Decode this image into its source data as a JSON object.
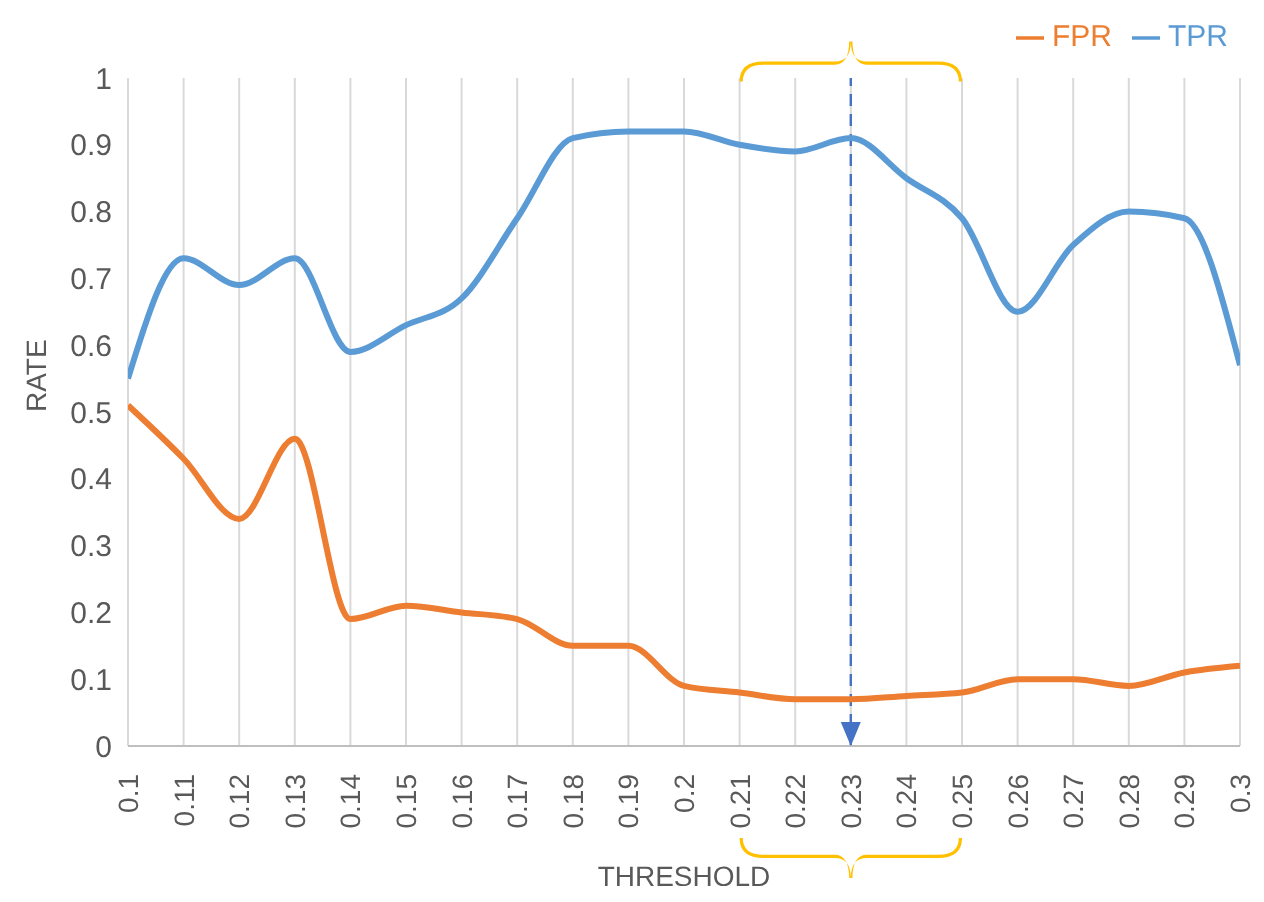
{
  "chart_data": {
    "type": "line",
    "xlabel": "THRESHOLD",
    "ylabel": "RATE",
    "categories": [
      "0.1",
      "0.11",
      "0.12",
      "0.13",
      "0.14",
      "0.15",
      "0.16",
      "0.17",
      "0.18",
      "0.19",
      "0.2",
      "0.21",
      "0.22",
      "0.23",
      "0.24",
      "0.25",
      "0.26",
      "0.27",
      "0.28",
      "0.29",
      "0.3"
    ],
    "series": [
      {
        "name": "FPR",
        "color": "#ed7d31",
        "values": [
          0.51,
          0.43,
          0.34,
          0.46,
          0.19,
          0.21,
          0.2,
          0.19,
          0.15,
          0.15,
          0.09,
          0.08,
          0.07,
          0.07,
          0.075,
          0.08,
          0.1,
          0.1,
          0.09,
          0.11,
          0.12
        ]
      },
      {
        "name": "TPR",
        "color": "#5b9bd5",
        "values": [
          0.55,
          0.73,
          0.69,
          0.73,
          0.59,
          0.63,
          0.67,
          0.79,
          0.91,
          0.92,
          0.92,
          0.9,
          0.89,
          0.91,
          0.85,
          0.79,
          0.65,
          0.75,
          0.8,
          0.79,
          0.57
        ]
      }
    ],
    "ylim": [
      0,
      1
    ],
    "yticks": [
      0,
      0.1,
      0.2,
      0.3,
      0.4,
      0.5,
      0.6,
      0.7,
      0.8,
      0.9,
      1
    ],
    "ref_lines": [
      {
        "axis": "x",
        "value": "0.23",
        "color": "#4472c4",
        "line_style": "dashed"
      }
    ],
    "grid": "x",
    "legend": "top right",
    "marker": "none",
    "line_style": "solid"
  }
}
